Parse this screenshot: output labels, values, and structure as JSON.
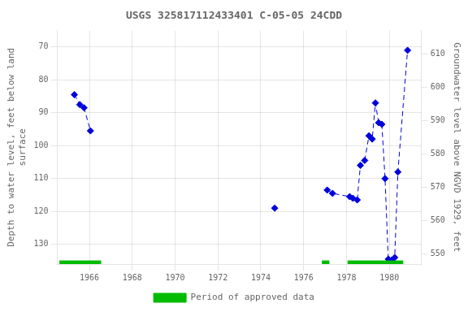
{
  "chart_data": {
    "type": "line",
    "title": "USGS 325817112433401 C-05-05 24CDD",
    "ylabel": "Depth to water level, feet below land\nsurface",
    "y2label": "Groundwater level above NGVD 1929, feet",
    "xlim": [
      1964.5,
      1981.5
    ],
    "xticks": [
      1966,
      1968,
      1970,
      1972,
      1974,
      1976,
      1978,
      1980
    ],
    "ylim": [
      136,
      65
    ],
    "yticks": [
      70,
      80,
      90,
      100,
      110,
      120,
      130
    ],
    "y2lim": [
      547,
      617
    ],
    "y2ticks": [
      550,
      560,
      570,
      580,
      590,
      600,
      610
    ],
    "grid": true,
    "legend": "bottom",
    "series": [
      {
        "x": [
          1965.3,
          1965.55,
          1965.75,
          1966.05
        ],
        "values": [
          84.5,
          87.5,
          88.5,
          95.5
        ],
        "color": "#0000dd",
        "marker": "diamond",
        "line_style": "dashed"
      },
      {
        "x": [
          1974.65
        ],
        "values": [
          119.0
        ],
        "color": "#0000dd",
        "marker": "diamond",
        "line_style": "dashed"
      },
      {
        "x": [
          1977.1,
          1977.35,
          1978.15,
          1978.3,
          1978.5,
          1978.65,
          1978.85,
          1979.05,
          1979.2,
          1979.35,
          1979.5,
          1979.65,
          1979.8,
          1979.95,
          1980.1,
          1980.25,
          1980.4,
          1980.85
        ],
        "values": [
          113.5,
          114.5,
          115.5,
          116.0,
          116.5,
          106.0,
          104.5,
          97.0,
          98.0,
          87.0,
          93.0,
          93.5,
          110.0,
          134.5,
          134.8,
          134.0,
          108.0,
          71.0
        ],
        "color": "#0000dd",
        "marker": "diamond",
        "line_style": "dashed"
      },
      {
        "name": "Period of approved data",
        "type": "bar",
        "color": "#00bb00",
        "ranges": [
          [
            1964.6,
            1966.55
          ],
          [
            1976.85,
            1977.2
          ],
          [
            1978.05,
            1980.65
          ]
        ],
        "y": 135.5,
        "height": 1.2
      }
    ]
  }
}
